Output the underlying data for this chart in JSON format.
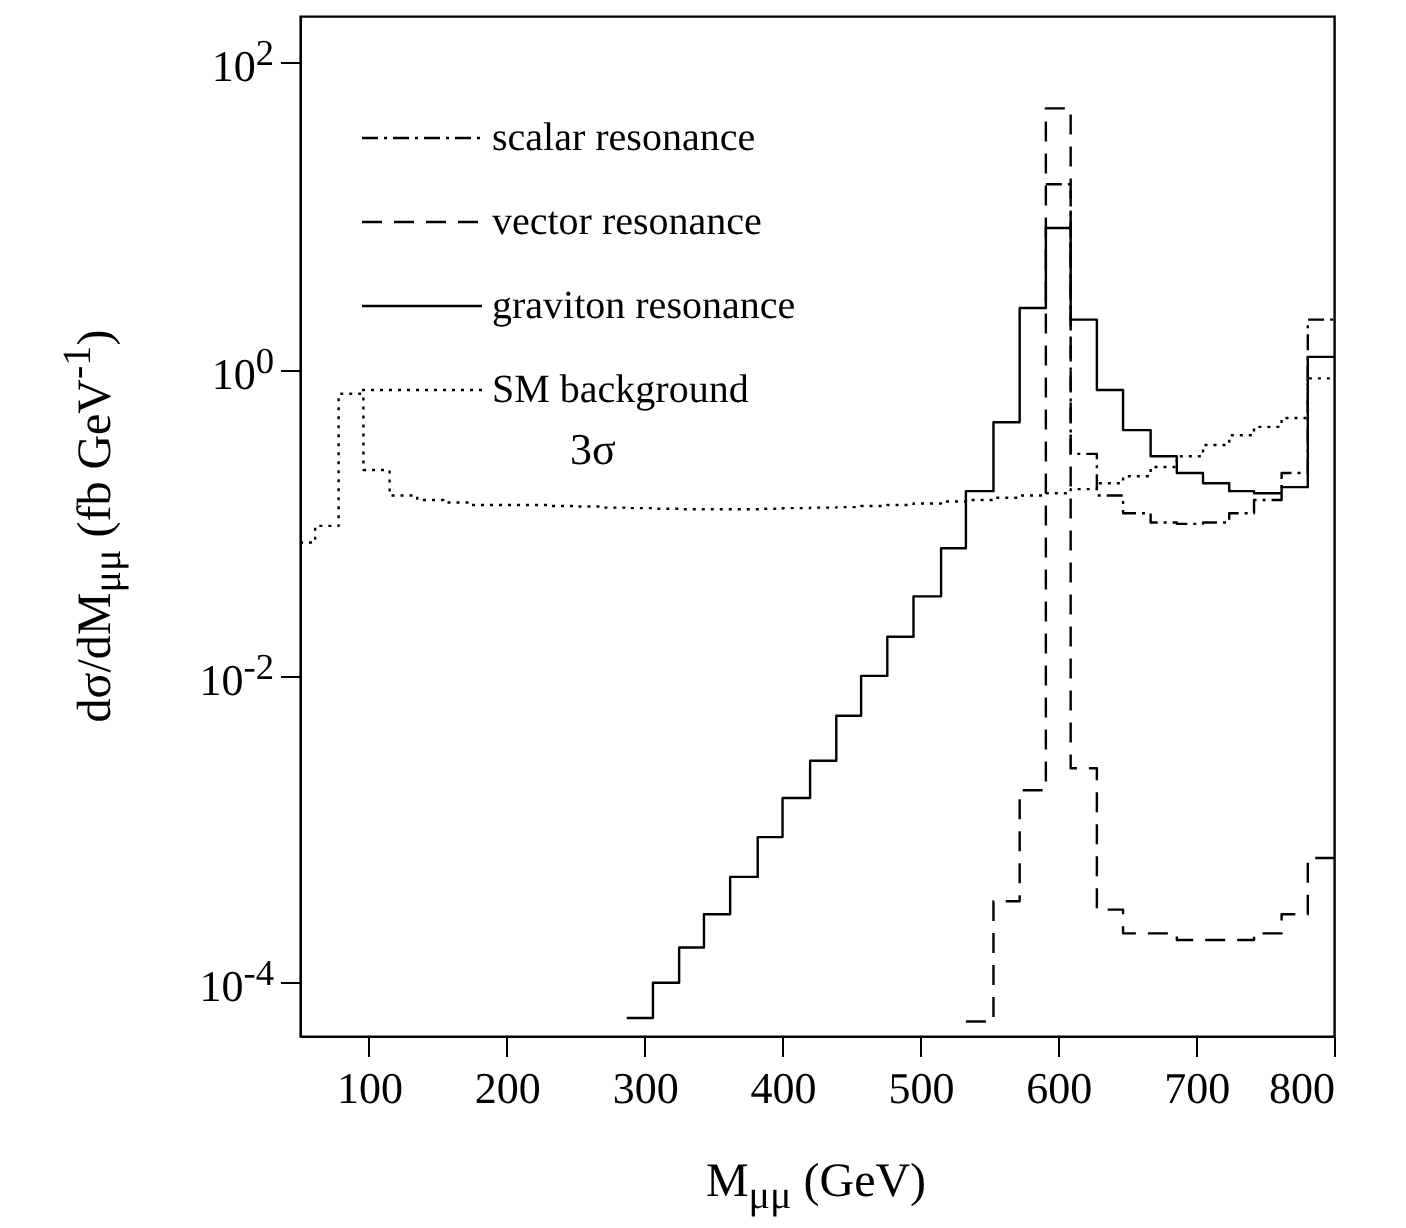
{
  "chart_data": {
    "type": "step",
    "xlabel": "M$_{μμ}$ (GeV)",
    "ylabel": "dσ/dM$_{μμ}$ (fb GeV$^{-1}$)",
    "xlim": [
      50,
      800
    ],
    "xticks": [
      100,
      200,
      300,
      400,
      500,
      600,
      700,
      800
    ],
    "ylim": [
      4.5e-05,
      200
    ],
    "yticks": [
      {
        "value": 0.0001,
        "label": "10$^{-4}$"
      },
      {
        "value": 0.01,
        "label": "10$^{-2}$"
      },
      {
        "value": 1,
        "label": "10$^{0}$"
      },
      {
        "value": 100,
        "label": "10$^{2}$"
      }
    ],
    "log": "y",
    "legend": "top left",
    "annotations": [
      "3σ"
    ],
    "series": [
      {
        "name": "scalar resonance",
        "color": "#000000",
        "line_style": "dashdot",
        "x": [
          591,
          609,
          628,
          647,
          667,
          686,
          705,
          724,
          742,
          762,
          781,
          800
        ],
        "values": [
          16,
          0.28,
          0.15,
          0.115,
          0.1,
          0.098,
          0.1,
          0.115,
          0.14,
          0.21,
          2.1,
          2.1
        ]
      },
      {
        "name": "vector resonance",
        "color": "#000000",
        "line_style": "dashed",
        "x": [
          533,
          553,
          572,
          591,
          609,
          628,
          647,
          667,
          686,
          705,
          724,
          742,
          762,
          781,
          800
        ],
        "values": [
          5.6e-05,
          0.00034,
          0.0018,
          50,
          0.0025,
          0.0003,
          0.00021,
          0.00021,
          0.00019,
          0.00019,
          0.00019,
          0.00021,
          0.00028,
          0.00065,
          0.00065
        ]
      },
      {
        "name": "graviton resonance",
        "color": "#000000",
        "line_style": "solid",
        "x": [
          287,
          306,
          325,
          343,
          362,
          382,
          400,
          420,
          439,
          457,
          476,
          495,
          515,
          533,
          553,
          572,
          591,
          609,
          628,
          647,
          667,
          686,
          705,
          724,
          742,
          762,
          781,
          800
        ],
        "values": [
          5.9e-05,
          0.0001,
          0.00017,
          0.00028,
          0.00049,
          0.00089,
          0.0016,
          0.0028,
          0.0055,
          0.01,
          0.018,
          0.033,
          0.068,
          0.16,
          0.45,
          2.5,
          8.3,
          2.1,
          0.73,
          0.4,
          0.27,
          0.21,
          0.18,
          0.16,
          0.155,
          0.17,
          1.2,
          1.2
        ]
      },
      {
        "name": "SM background",
        "color": "#000000",
        "line_style": "dotted",
        "x": [
          50,
          61,
          78,
          96,
          115,
          135,
          154,
          173,
          192,
          212,
          231,
          250,
          269,
          288,
          307,
          326,
          345,
          364,
          383,
          400,
          420,
          439,
          457,
          476,
          495,
          515,
          533,
          553,
          572,
          591,
          609,
          628,
          647,
          667,
          686,
          705,
          724,
          742,
          762,
          781,
          800
        ],
        "values": [
          0.074,
          0.095,
          0.69,
          0.22,
          0.15,
          0.14,
          0.135,
          0.13,
          0.13,
          0.13,
          0.128,
          0.127,
          0.125,
          0.124,
          0.123,
          0.122,
          0.122,
          0.122,
          0.123,
          0.124,
          0.125,
          0.126,
          0.128,
          0.13,
          0.133,
          0.137,
          0.14,
          0.145,
          0.15,
          0.155,
          0.165,
          0.18,
          0.2,
          0.23,
          0.27,
          0.32,
          0.37,
          0.42,
          0.48,
          0.87,
          0.87
        ]
      }
    ]
  }
}
